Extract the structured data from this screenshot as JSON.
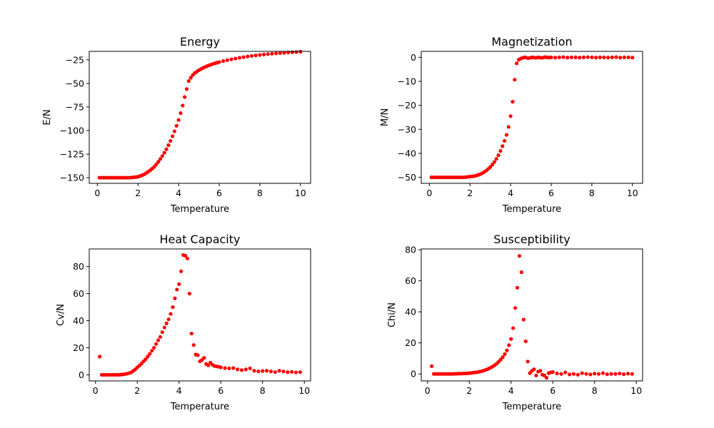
{
  "style": {
    "marker_color": "#ff0000",
    "axis_color": "#000000",
    "background": "#ffffff"
  },
  "chart_data": [
    {
      "type": "scatter",
      "title": "Energy",
      "xlabel": "Temperature",
      "ylabel": "E/N",
      "xlim": [
        -0.4,
        10.5
      ],
      "ylim": [
        -156,
        -16
      ],
      "xticks": [
        0,
        2,
        4,
        6,
        8,
        10
      ],
      "yticks": [
        -150,
        -125,
        -100,
        -75,
        -50,
        -25
      ],
      "grid": false,
      "series": [
        {
          "x": [
            0.1,
            0.2,
            0.3,
            0.4,
            0.5,
            0.6,
            0.7,
            0.8,
            0.9,
            1.0,
            1.1,
            1.2,
            1.3,
            1.4,
            1.5,
            1.6,
            1.7,
            1.8,
            1.9,
            2.0,
            2.1,
            2.2,
            2.3,
            2.4,
            2.5,
            2.6,
            2.7,
            2.8,
            2.9,
            3.0,
            3.1,
            3.2,
            3.3,
            3.4,
            3.5,
            3.6,
            3.7,
            3.8,
            3.9,
            4.0,
            4.1,
            4.2,
            4.3,
            4.4,
            4.5,
            4.6,
            4.7,
            4.8,
            4.9,
            5.0,
            5.1,
            5.2,
            5.3,
            5.4,
            5.5,
            5.6,
            5.7,
            5.8,
            5.9,
            6.0,
            6.2,
            6.4,
            6.6,
            6.8,
            7.0,
            7.2,
            7.4,
            7.6,
            7.8,
            8.0,
            8.2,
            8.4,
            8.6,
            8.8,
            9.0,
            9.2,
            9.4,
            9.6,
            9.8,
            10.0
          ],
          "y": [
            -150,
            -150,
            -150,
            -150,
            -150,
            -150,
            -150,
            -150,
            -150,
            -150,
            -150,
            -150,
            -150,
            -150,
            -150,
            -150,
            -149.8,
            -149.6,
            -149.3,
            -149,
            -148.3,
            -147.5,
            -146.5,
            -145.2,
            -143.8,
            -142.2,
            -140.5,
            -138.5,
            -136,
            -133.2,
            -130.2,
            -127,
            -123.5,
            -119.8,
            -115.5,
            -111,
            -106,
            -100.8,
            -95,
            -88.8,
            -81.5,
            -73.5,
            -64.5,
            -56,
            -47.5,
            -44,
            -41,
            -39,
            -37.5,
            -36,
            -34.8,
            -33.6,
            -32.6,
            -31.7,
            -30.8,
            -30,
            -29.3,
            -28.6,
            -28,
            -27.4,
            -26.3,
            -25.3,
            -24.4,
            -23.6,
            -22.8,
            -22.1,
            -21.4,
            -20.8,
            -20.3,
            -19.8,
            -19.3,
            -18.9,
            -18.5,
            -18.1,
            -17.8,
            -17.5,
            -17.2,
            -16.9,
            -16.7,
            -16.4
          ]
        }
      ]
    },
    {
      "type": "scatter",
      "title": "Magnetization",
      "xlabel": "Temperature",
      "ylabel": "M/N",
      "xlim": [
        -0.4,
        10.5
      ],
      "ylim": [
        -52.5,
        2.5
      ],
      "xticks": [
        0,
        2,
        4,
        6,
        8,
        10
      ],
      "yticks": [
        -50,
        -40,
        -30,
        -20,
        -10,
        0
      ],
      "grid": false,
      "series": [
        {
          "x": [
            0.1,
            0.2,
            0.3,
            0.4,
            0.5,
            0.6,
            0.7,
            0.8,
            0.9,
            1.0,
            1.1,
            1.2,
            1.3,
            1.4,
            1.5,
            1.6,
            1.7,
            1.8,
            1.9,
            2.0,
            2.1,
            2.2,
            2.3,
            2.4,
            2.5,
            2.6,
            2.7,
            2.8,
            2.9,
            3.0,
            3.1,
            3.2,
            3.3,
            3.4,
            3.5,
            3.6,
            3.7,
            3.8,
            3.9,
            4.0,
            4.1,
            4.2,
            4.3,
            4.4,
            4.5,
            4.6,
            4.7,
            4.8,
            4.9,
            5.0,
            5.1,
            5.2,
            5.3,
            5.4,
            5.5,
            5.6,
            5.7,
            5.8,
            5.9,
            6.0,
            6.2,
            6.4,
            6.6,
            6.8,
            7.0,
            7.2,
            7.4,
            7.6,
            7.8,
            8.0,
            8.2,
            8.4,
            8.6,
            8.8,
            9.0,
            9.2,
            9.4,
            9.6,
            9.8,
            10.0
          ],
          "y": [
            -50,
            -50,
            -50,
            -50,
            -50,
            -50,
            -50,
            -50,
            -50,
            -50,
            -50,
            -50,
            -50,
            -50,
            -50,
            -50,
            -50,
            -49.9,
            -49.8,
            -49.7,
            -49.6,
            -49.5,
            -49.3,
            -49,
            -48.7,
            -48.3,
            -47.8,
            -47.2,
            -46.5,
            -45.7,
            -44.7,
            -43.6,
            -42.3,
            -40.8,
            -39,
            -37,
            -34.8,
            -32.3,
            -29,
            -24.5,
            -18.5,
            -9.3,
            -2.5,
            -1,
            -0.5,
            -0.2,
            0,
            -0.2,
            -0.3,
            -0.1,
            0,
            -0.2,
            -0.1,
            0,
            -0.2,
            -0.1,
            0.1,
            0,
            -0.1,
            0,
            -0.1,
            0,
            0.1,
            -0.1,
            0,
            0,
            -0.1,
            0,
            0.1,
            0,
            -0.1,
            0,
            0,
            -0.1,
            0,
            0.1,
            -0.1,
            0,
            0,
            -0.1
          ]
        }
      ]
    },
    {
      "type": "scatter",
      "title": "Heat Capacity",
      "xlabel": "Temperature",
      "ylabel": "Cv/N",
      "xlim": [
        -0.3,
        10.3
      ],
      "ylim": [
        -4.5,
        93
      ],
      "xticks": [
        0,
        2,
        4,
        6,
        8,
        10
      ],
      "yticks": [
        0,
        20,
        40,
        60,
        80
      ],
      "grid": false,
      "series": [
        {
          "x": [
            0.2,
            0.3,
            0.4,
            0.5,
            0.6,
            0.7,
            0.8,
            0.9,
            1.0,
            1.1,
            1.2,
            1.3,
            1.4,
            1.5,
            1.6,
            1.7,
            1.8,
            1.9,
            2.0,
            2.1,
            2.2,
            2.3,
            2.4,
            2.5,
            2.6,
            2.7,
            2.8,
            2.9,
            3.0,
            3.1,
            3.2,
            3.3,
            3.4,
            3.5,
            3.6,
            3.7,
            3.8,
            3.9,
            4.0,
            4.1,
            4.2,
            4.3,
            4.4,
            4.5,
            4.6,
            4.7,
            4.8,
            4.9,
            5.0,
            5.1,
            5.2,
            5.3,
            5.4,
            5.5,
            5.6,
            5.7,
            5.8,
            5.9,
            6.0,
            6.2,
            6.4,
            6.6,
            6.8,
            7.0,
            7.2,
            7.4,
            7.6,
            7.8,
            8.0,
            8.2,
            8.4,
            8.6,
            8.8,
            9.0,
            9.2,
            9.4,
            9.6,
            9.8
          ],
          "y": [
            13.5,
            0,
            0,
            0,
            0,
            0,
            0,
            0,
            0,
            0,
            0.1,
            0.3,
            0.5,
            0.8,
            1.2,
            1.8,
            2.8,
            4,
            5.5,
            6.8,
            8.2,
            10,
            11.5,
            13.5,
            15.5,
            17.8,
            20,
            22.8,
            25.5,
            28,
            31.5,
            35,
            38,
            41,
            45,
            50,
            56.5,
            63,
            67,
            76.5,
            88.5,
            88,
            86,
            60,
            30.5,
            22,
            15,
            14.5,
            10,
            11,
            12.5,
            8,
            7,
            9,
            7.5,
            6.5,
            6.2,
            6,
            5.5,
            5,
            4.8,
            5,
            4,
            3.5,
            4,
            4.8,
            3,
            2.5,
            2.8,
            3,
            2.5,
            2,
            3,
            2.5,
            2,
            2.2,
            1.8,
            2
          ]
        }
      ]
    },
    {
      "type": "scatter",
      "title": "Susceptibility",
      "xlabel": "Temperature",
      "ylabel": "Chi/N",
      "xlim": [
        -0.3,
        10.3
      ],
      "ylim": [
        -4.5,
        80.5
      ],
      "xticks": [
        0,
        2,
        4,
        6,
        8,
        10
      ],
      "yticks": [
        0,
        20,
        40,
        60,
        80
      ],
      "grid": false,
      "series": [
        {
          "x": [
            0.2,
            0.3,
            0.4,
            0.5,
            0.6,
            0.7,
            0.8,
            0.9,
            1.0,
            1.1,
            1.2,
            1.3,
            1.4,
            1.5,
            1.6,
            1.7,
            1.8,
            1.9,
            2.0,
            2.1,
            2.2,
            2.3,
            2.4,
            2.5,
            2.6,
            2.7,
            2.8,
            2.9,
            3.0,
            3.1,
            3.2,
            3.3,
            3.4,
            3.5,
            3.6,
            3.7,
            3.8,
            3.9,
            4.0,
            4.1,
            4.2,
            4.3,
            4.4,
            4.5,
            4.6,
            4.7,
            4.8,
            4.9,
            5.0,
            5.1,
            5.2,
            5.3,
            5.4,
            5.5,
            5.6,
            5.7,
            5.8,
            5.9,
            6.0,
            6.2,
            6.4,
            6.6,
            6.8,
            7.0,
            7.2,
            7.4,
            7.6,
            7.8,
            8.0,
            8.2,
            8.4,
            8.6,
            8.8,
            9.0,
            9.2,
            9.4,
            9.6,
            9.8
          ],
          "y": [
            5,
            0,
            0,
            0,
            0,
            0,
            0,
            0,
            0,
            0,
            0,
            0.1,
            0.1,
            0.2,
            0.2,
            0.3,
            0.3,
            0.4,
            0.5,
            0.6,
            0.8,
            1,
            1.2,
            1.5,
            1.8,
            2.2,
            2.7,
            3.2,
            3.9,
            4.6,
            5.5,
            6.5,
            7.8,
            9.2,
            10.8,
            12.8,
            15.2,
            18.5,
            22.5,
            29.5,
            42.5,
            55.5,
            76,
            65.5,
            35,
            21,
            8,
            0.5,
            2,
            3,
            -1,
            1.5,
            2,
            -0.5,
            -1,
            -2.5,
            0.5,
            1,
            1.2,
            0.3,
            0,
            1,
            -0.3,
            0,
            -0.5,
            0.5,
            0,
            -0.3,
            0.2,
            0,
            0.5,
            -0.2,
            0,
            0,
            0.3,
            -0.2,
            0.2,
            0
          ]
        }
      ]
    }
  ]
}
